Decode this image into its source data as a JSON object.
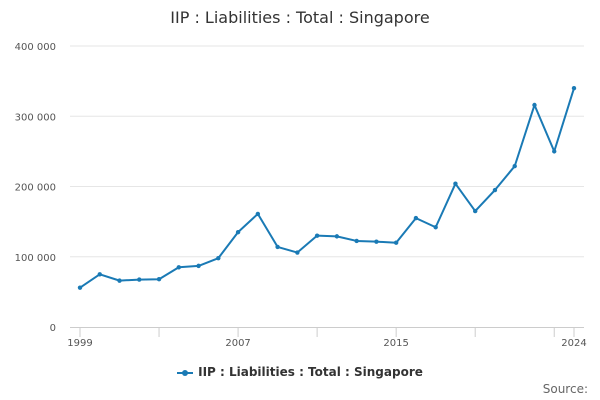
{
  "chart_data": {
    "type": "line",
    "title": "IIP : Liabilities : Total : Singapore",
    "xlabel": "",
    "ylabel": "",
    "x": [
      1999,
      2000,
      2001,
      2002,
      2003,
      2004,
      2005,
      2006,
      2007,
      2008,
      2009,
      2010,
      2011,
      2012,
      2013,
      2014,
      2015,
      2016,
      2017,
      2018,
      2019,
      2020,
      2021,
      2022,
      2023,
      2024
    ],
    "series": [
      {
        "name": "IIP : Liabilities : Total : Singapore",
        "values": [
          56000,
          75000,
          66000,
          67500,
          68000,
          85000,
          87000,
          98000,
          135000,
          161000,
          114000,
          106000,
          130000,
          129000,
          122500,
          121500,
          120000,
          155000,
          142000,
          204000,
          165000,
          195000,
          229000,
          316000,
          250000,
          340000
        ]
      }
    ],
    "xlim": [
      1999,
      2024
    ],
    "ylim": [
      0,
      400000
    ],
    "x_tick_labels": [
      "1999",
      "2007",
      "2015",
      "2024"
    ],
    "x_tick_values": [
      1999,
      2007,
      2015,
      2024
    ],
    "y_tick_labels": [
      "0",
      "100 000",
      "200 000",
      "300 000",
      "400 000"
    ],
    "y_tick_values": [
      0,
      100000,
      200000,
      300000,
      400000
    ],
    "grid": true,
    "legend_position": "bottom",
    "line_color": "#1a7ab5"
  },
  "legend": {
    "label": "IIP : Liabilities : Total : Singapore"
  },
  "source": {
    "label": "Source:"
  }
}
